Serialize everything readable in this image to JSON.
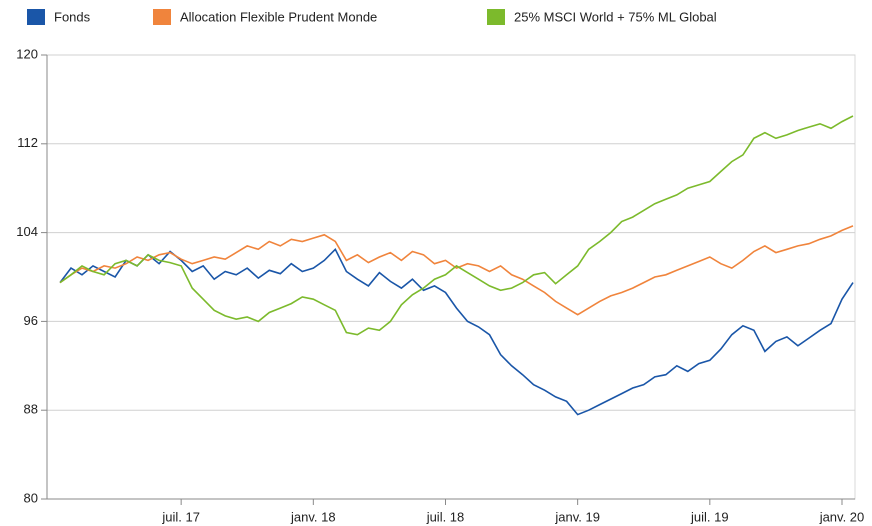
{
  "chart_data": {
    "type": "line",
    "categories": [
      null,
      null,
      null,
      null,
      null,
      null,
      null,
      null,
      null,
      null,
      null,
      "juil. 17",
      null,
      null,
      null,
      null,
      null,
      null,
      null,
      null,
      null,
      null,
      null,
      "janv. 18",
      null,
      null,
      null,
      null,
      null,
      null,
      null,
      null,
      null,
      null,
      null,
      "juil. 18",
      null,
      null,
      null,
      null,
      null,
      null,
      null,
      null,
      null,
      null,
      null,
      "janv. 19",
      null,
      null,
      null,
      null,
      null,
      null,
      null,
      null,
      null,
      null,
      null,
      "juil. 19",
      null,
      null,
      null,
      null,
      null,
      null,
      null,
      null,
      null,
      null,
      null,
      "janv. 20",
      null
    ],
    "series": [
      {
        "name": "Fonds",
        "color": "#1a56a8",
        "values": [
          99.5,
          100.8,
          100.2,
          101,
          100.5,
          100,
          101.5,
          101,
          102,
          101.2,
          102.3,
          101.5,
          100.5,
          101,
          99.8,
          100.5,
          100.2,
          100.8,
          99.9,
          100.6,
          100.3,
          101.2,
          100.5,
          100.8,
          101.5,
          102.5,
          100.5,
          99.8,
          99.2,
          100.4,
          99.6,
          99,
          99.8,
          98.8,
          99.2,
          98.6,
          97.2,
          96,
          95.5,
          94.8,
          93,
          92,
          91.2,
          90.3,
          89.8,
          89.2,
          88.8,
          87.6,
          88,
          88.5,
          89,
          89.5,
          90,
          90.3,
          91,
          91.2,
          92,
          91.5,
          92.2,
          92.5,
          93.5,
          94.8,
          95.6,
          95.2,
          93.3,
          94.2,
          94.6,
          93.8,
          94.5,
          95.2,
          95.8,
          98,
          99.5
        ]
      },
      {
        "name": "Allocation Flexible Prudent Monde",
        "color": "#f0843c",
        "values": [
          99.5,
          100.2,
          100.8,
          100.5,
          101,
          100.8,
          101.2,
          101.8,
          101.5,
          102,
          102.2,
          101.6,
          101.2,
          101.5,
          101.8,
          101.6,
          102.2,
          102.8,
          102.5,
          103.2,
          102.8,
          103.4,
          103.2,
          103.5,
          103.8,
          103.2,
          101.5,
          102,
          101.3,
          101.8,
          102.2,
          101.5,
          102.3,
          102,
          101.2,
          101.5,
          100.8,
          101.2,
          101,
          100.5,
          101,
          100.2,
          99.8,
          99.2,
          98.6,
          97.8,
          97.2,
          96.6,
          97.2,
          97.8,
          98.3,
          98.6,
          99,
          99.5,
          100,
          100.2,
          100.6,
          101,
          101.4,
          101.8,
          101.2,
          100.8,
          101.5,
          102.3,
          102.8,
          102.2,
          102.5,
          102.8,
          103,
          103.4,
          103.7,
          104.2,
          104.6
        ]
      },
      {
        "name": "25% MSCI World + 75% ML Global",
        "color": "#7cba2c",
        "values": [
          99.5,
          100.2,
          101,
          100.5,
          100.2,
          101.2,
          101.5,
          101,
          102,
          101.5,
          101.3,
          101,
          99,
          98,
          97,
          96.5,
          96.2,
          96.4,
          96,
          96.8,
          97.2,
          97.6,
          98.2,
          98,
          97.5,
          97,
          95,
          94.8,
          95.4,
          95.2,
          96,
          97.5,
          98.4,
          99,
          99.8,
          100.2,
          101,
          100.4,
          99.8,
          99.2,
          98.8,
          99,
          99.5,
          100.2,
          100.4,
          99.4,
          100.2,
          101,
          102.5,
          103.2,
          104,
          105,
          105.4,
          106,
          106.6,
          107,
          107.4,
          108,
          108.3,
          108.6,
          109.5,
          110.4,
          111,
          112.5,
          113,
          112.5,
          112.8,
          113.2,
          113.5,
          113.8,
          113.4,
          114,
          114.5
        ]
      }
    ],
    "ylim": [
      80,
      120
    ],
    "yticks": [
      80,
      88,
      96,
      104,
      112,
      120
    ],
    "grid": true
  }
}
